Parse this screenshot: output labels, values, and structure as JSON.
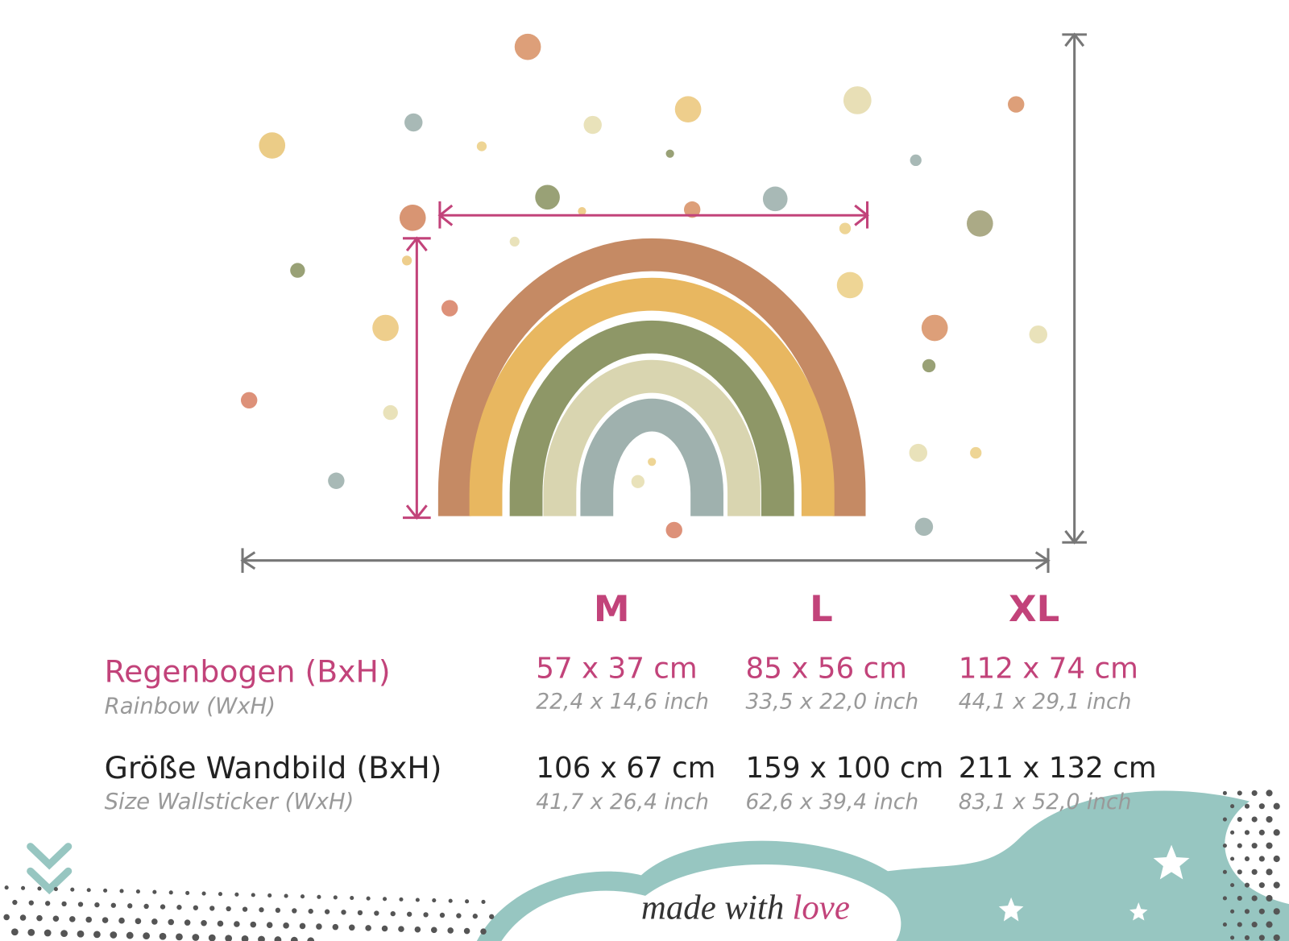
{
  "sizes": [
    "M",
    "L",
    "XL"
  ],
  "rows": [
    {
      "label": "Regenbogen (BxH)",
      "sublabel": "Rainbow (WxH)",
      "cm": [
        "57 x 37 cm",
        "85 x 56 cm",
        "112 x 74 cm"
      ],
      "inch": [
        "22,4 x 14,6 inch",
        "33,5 x 22,0 inch",
        "44,1 x 29,1 inch"
      ]
    },
    {
      "label": "Größe Wandbild (BxH)",
      "sublabel": "Size Wallsticker (WxH)",
      "cm": [
        "106 x 67 cm",
        "159 x 100 cm",
        "211 x 132 cm"
      ],
      "inch": [
        "41,7 x 26,4 inch",
        "62,6 x 39,4 inch",
        "83,1 x 52,0 inch"
      ]
    }
  ],
  "footer": {
    "text_a": "made with",
    "text_b": "love"
  }
}
